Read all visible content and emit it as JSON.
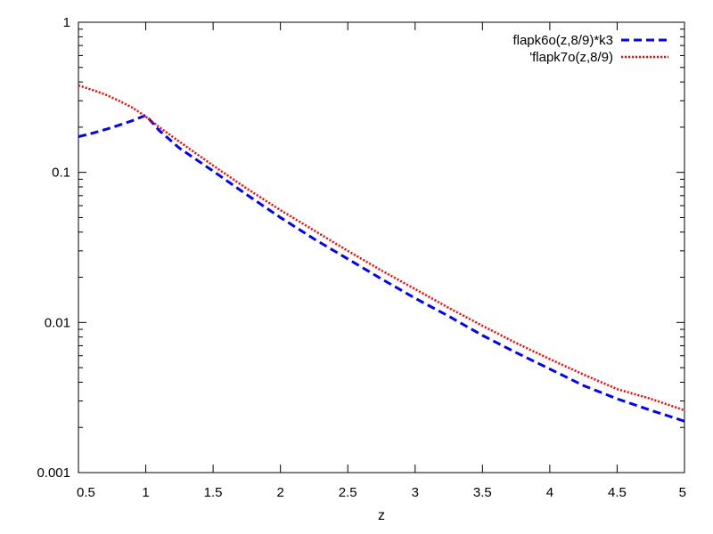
{
  "chart_data": {
    "type": "line",
    "title": "",
    "xlabel": "z",
    "ylabel": "",
    "xlim": [
      0.5,
      5
    ],
    "ylim": [
      0.001,
      1
    ],
    "yscale": "log",
    "grid": false,
    "legend_position": "top-right",
    "x_ticks": [
      "0.5",
      "1",
      "1.5",
      "2",
      "2.5",
      "3",
      "3.5",
      "4",
      "4.5",
      "5"
    ],
    "y_ticks": [
      "0.001",
      "0.01",
      "0.1",
      "1"
    ],
    "series": [
      {
        "name": "flapk6o(z,8/9)*k3",
        "color": "#0000ff",
        "style": "dashed",
        "x": [
          0.5,
          0.6,
          0.7,
          0.8,
          0.9,
          1.0,
          1.1,
          1.25,
          1.5,
          1.75,
          2.0,
          2.25,
          2.5,
          2.75,
          3.0,
          3.25,
          3.5,
          3.75,
          4.0,
          4.25,
          4.5,
          4.75,
          5.0
        ],
        "y": [
          0.173,
          0.182,
          0.193,
          0.206,
          0.221,
          0.24,
          0.19,
          0.145,
          0.102,
          0.071,
          0.05,
          0.036,
          0.0265,
          0.0195,
          0.0145,
          0.011,
          0.0082,
          0.0063,
          0.0049,
          0.0038,
          0.0031,
          0.0026,
          0.0022
        ]
      },
      {
        "name": "'flapk7o(z,8/9)",
        "color": "#ff0000",
        "style": "dotted",
        "x": [
          0.5,
          0.6,
          0.7,
          0.8,
          0.9,
          1.0,
          1.1,
          1.25,
          1.5,
          1.75,
          2.0,
          2.25,
          2.5,
          2.75,
          3.0,
          3.25,
          3.5,
          3.75,
          4.0,
          4.25,
          4.5,
          4.75,
          5.0
        ],
        "y": [
          0.38,
          0.355,
          0.33,
          0.3,
          0.27,
          0.235,
          0.2,
          0.16,
          0.111,
          0.078,
          0.056,
          0.041,
          0.03,
          0.0222,
          0.0167,
          0.0125,
          0.0095,
          0.0073,
          0.0057,
          0.0045,
          0.0036,
          0.0031,
          0.0026
        ]
      }
    ]
  }
}
